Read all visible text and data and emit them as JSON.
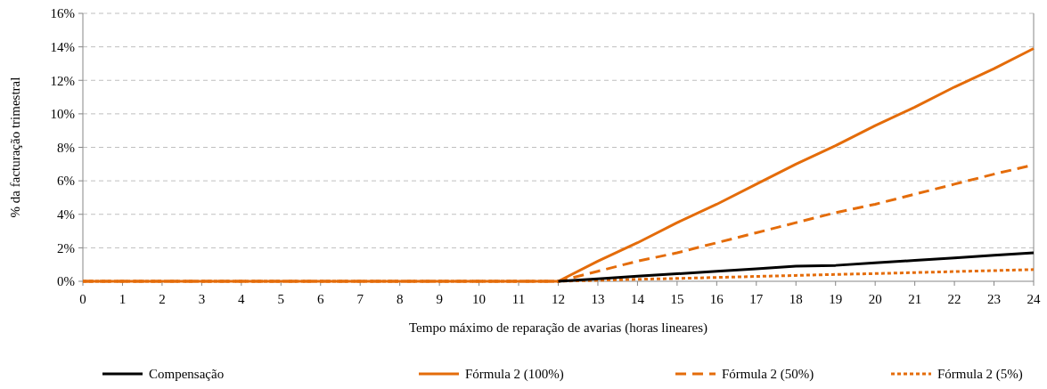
{
  "chart_data": {
    "type": "line",
    "xlabel": "Tempo máximo de reparação de avarias (horas lineares)",
    "ylabel": "% da facturação trimestral",
    "x": [
      0,
      1,
      2,
      3,
      4,
      5,
      6,
      7,
      8,
      9,
      10,
      11,
      12,
      13,
      14,
      15,
      16,
      17,
      18,
      19,
      20,
      21,
      22,
      23,
      24
    ],
    "xlim": [
      0,
      24
    ],
    "xticks": [
      0,
      1,
      2,
      3,
      4,
      5,
      6,
      7,
      8,
      9,
      10,
      11,
      12,
      13,
      14,
      15,
      16,
      17,
      18,
      19,
      20,
      21,
      22,
      23,
      24
    ],
    "ylim": [
      0,
      16
    ],
    "yticks": [
      {
        "value": 0,
        "label": "0%"
      },
      {
        "value": 2,
        "label": "2%"
      },
      {
        "value": 4,
        "label": "4%"
      },
      {
        "value": 6,
        "label": "6%"
      },
      {
        "value": 8,
        "label": "8%"
      },
      {
        "value": 10,
        "label": "10%"
      },
      {
        "value": 12,
        "label": "12%"
      },
      {
        "value": 14,
        "label": "14%"
      },
      {
        "value": 16,
        "label": "16%"
      }
    ],
    "grid": "y",
    "legend": "bottom",
    "series": [
      {
        "name": "Compensação",
        "color": "#000000",
        "line_style": "solid",
        "values": [
          null,
          null,
          null,
          null,
          null,
          null,
          null,
          null,
          null,
          null,
          null,
          null,
          0,
          0.15,
          0.3,
          0.45,
          0.6,
          0.75,
          0.9,
          0.95,
          1.1,
          1.25,
          1.4,
          1.55,
          1.7
        ]
      },
      {
        "name": "Fórmula 2 (100%)",
        "color": "#e46c0a",
        "line_style": "solid",
        "values": [
          0,
          0,
          0,
          0,
          0,
          0,
          0,
          0,
          0,
          0,
          0,
          0,
          0,
          1.2,
          2.3,
          3.5,
          4.6,
          5.8,
          7.0,
          8.1,
          9.3,
          10.4,
          11.6,
          12.7,
          13.9
        ]
      },
      {
        "name": "Fórmula 2 (50%)",
        "color": "#e46c0a",
        "line_style": "dashed",
        "values": [
          0,
          0,
          0,
          0,
          0,
          0,
          0,
          0,
          0,
          0,
          0,
          0,
          0,
          0.6,
          1.2,
          1.7,
          2.3,
          2.9,
          3.5,
          4.1,
          4.6,
          5.2,
          5.8,
          6.4,
          6.95
        ]
      },
      {
        "name": "Fórmula 2 (5%)",
        "color": "#e46c0a",
        "line_style": "dotted",
        "values": [
          0,
          0,
          0,
          0,
          0,
          0,
          0,
          0,
          0,
          0,
          0,
          0,
          0,
          0.06,
          0.12,
          0.17,
          0.23,
          0.29,
          0.35,
          0.41,
          0.46,
          0.52,
          0.58,
          0.64,
          0.7
        ]
      }
    ]
  }
}
